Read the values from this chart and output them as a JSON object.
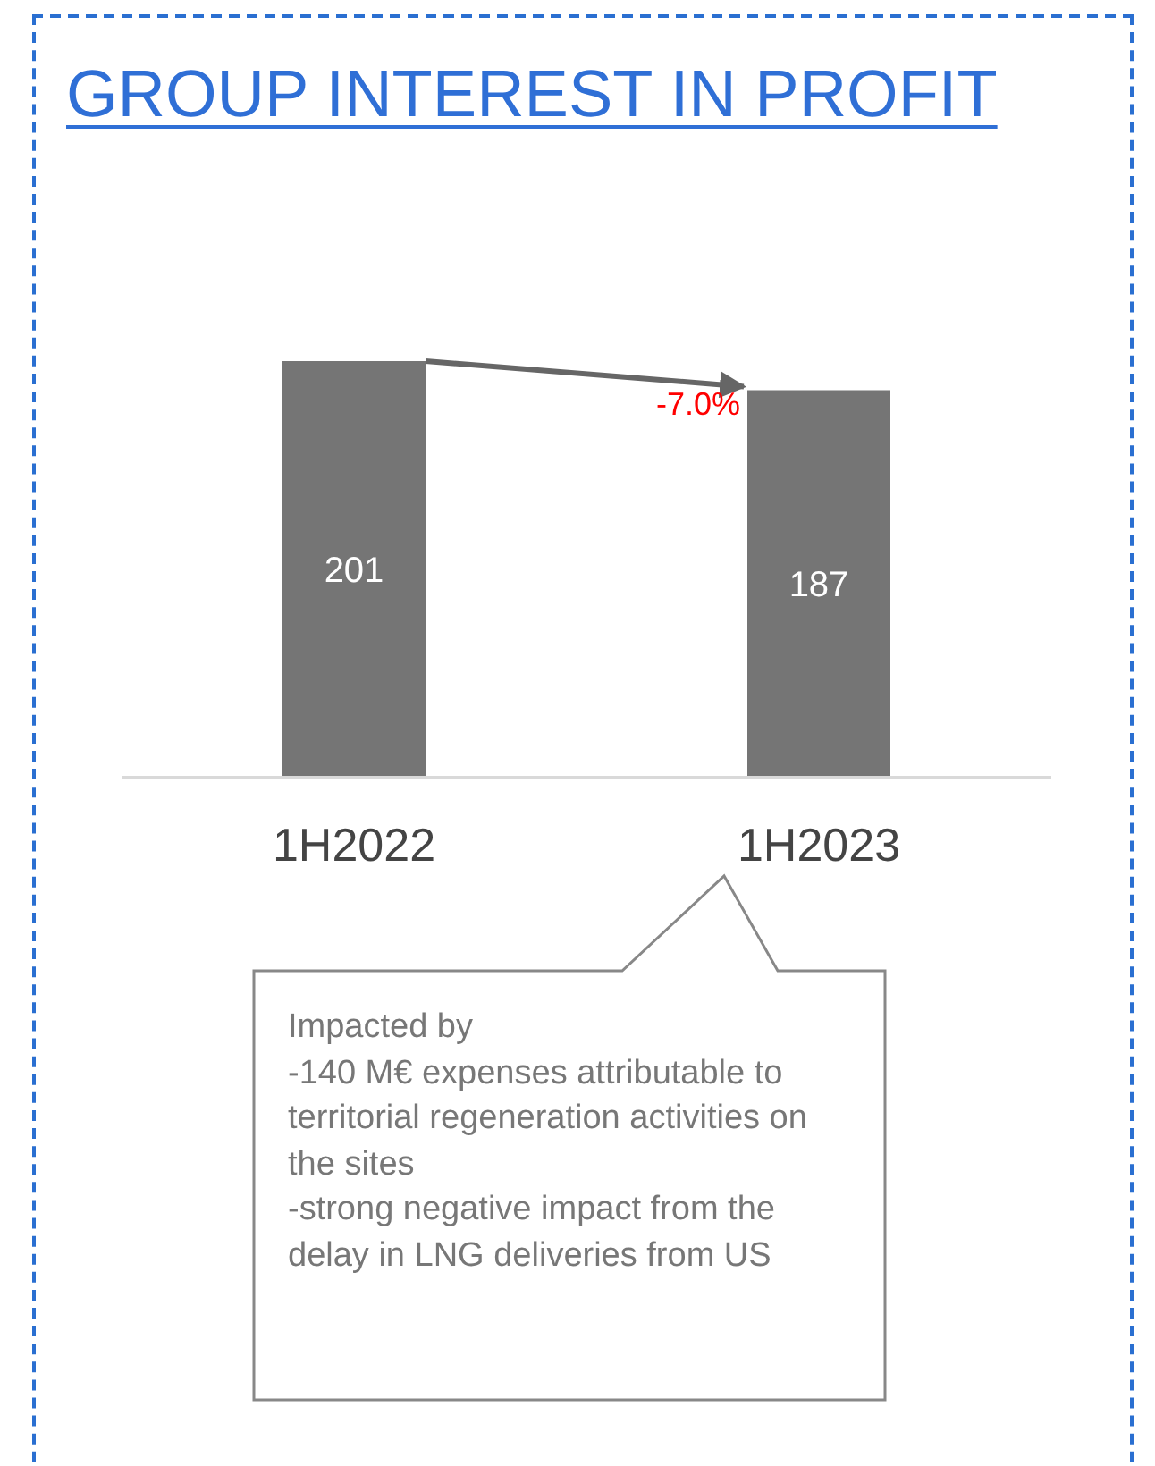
{
  "chart_data": {
    "type": "bar",
    "title": "GROUP INTEREST IN PROFIT",
    "categories": [
      "1H2022",
      "1H2023"
    ],
    "values": [
      201,
      187
    ],
    "color": "#757575",
    "data_labels": true,
    "annotations": [
      "-7.0%",
      "Impacted by\n-140 M€ expenses attributable to territorial regeneration activities on the sites\n-strong negative impact from the delay in LNG deliveries from US"
    ]
  }
}
